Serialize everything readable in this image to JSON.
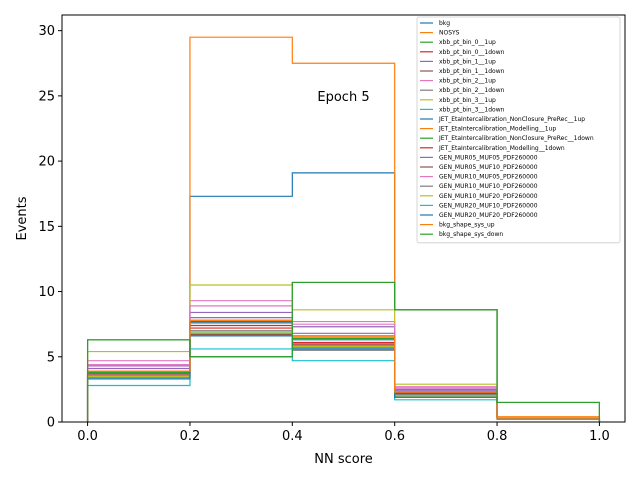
{
  "chart_data": {
    "type": "line",
    "style": "step-histogram",
    "title": "",
    "xlabel": "NN score",
    "ylabel": "Events",
    "xlim": [
      -0.05,
      1.05
    ],
    "ylim": [
      0,
      31.2
    ],
    "xticks": [
      "0.0",
      "0.2",
      "0.4",
      "0.6",
      "0.8",
      "1.0"
    ],
    "xtick_values": [
      0.0,
      0.2,
      0.4,
      0.6,
      0.8,
      1.0
    ],
    "yticks": [
      "0",
      "5",
      "10",
      "15",
      "20",
      "25",
      "30"
    ],
    "ytick_values": [
      0,
      5,
      10,
      15,
      20,
      25,
      30
    ],
    "bin_edges": [
      0.0,
      0.2,
      0.4,
      0.6,
      0.8,
      1.0
    ],
    "annotation": {
      "text": "Epoch 5",
      "x": 0.5,
      "y": 25
    },
    "legend_location": "top-right",
    "series": [
      {
        "name": "bkg",
        "color": "#1f77b4",
        "values": [
          3.8,
          17.3,
          19.1,
          8.6,
          0.3
        ]
      },
      {
        "name": "NOSYS",
        "color": "#ff7f0e",
        "values": [
          3.9,
          29.5,
          27.5,
          8.6,
          0.4
        ]
      },
      {
        "name": "xbb_pt_bin_0__1up",
        "color": "#2ca02c",
        "values": [
          6.3,
          5.0,
          10.7,
          8.6,
          1.5
        ]
      },
      {
        "name": "xbb_pt_bin_0__1down",
        "color": "#d62728",
        "values": [
          3.6,
          7.2,
          5.9,
          2.3,
          0.3
        ]
      },
      {
        "name": "xbb_pt_bin_1__1up",
        "color": "#9467bd",
        "values": [
          4.3,
          8.4,
          7.3,
          2.5,
          0.3
        ]
      },
      {
        "name": "xbb_pt_bin_1__1down",
        "color": "#8c564b",
        "values": [
          3.5,
          6.7,
          5.6,
          2.1,
          0.3
        ]
      },
      {
        "name": "xbb_pt_bin_2__1up",
        "color": "#e377c2",
        "values": [
          4.7,
          9.3,
          7.7,
          2.7,
          0.3
        ]
      },
      {
        "name": "xbb_pt_bin_2__1down",
        "color": "#7f7f7f",
        "values": [
          3.4,
          6.6,
          5.5,
          2.0,
          0.3
        ]
      },
      {
        "name": "xbb_pt_bin_3__1up",
        "color": "#bcbd22",
        "values": [
          5.4,
          10.5,
          8.6,
          2.9,
          0.3
        ]
      },
      {
        "name": "xbb_pt_bin_3__1down",
        "color": "#17becf",
        "values": [
          2.8,
          5.6,
          4.7,
          1.7,
          0.2
        ]
      },
      {
        "name": "JET_EtaIntercalibration_NonClosure_PreRec__1up",
        "color": "#1f77b4",
        "values": [
          3.8,
          7.6,
          6.3,
          2.2,
          0.3
        ]
      },
      {
        "name": "JET_EtaIntercalibration_Modelling__1up",
        "color": "#ff7f0e",
        "values": [
          3.9,
          7.8,
          6.5,
          2.3,
          0.3
        ]
      },
      {
        "name": "JET_EtaIntercalibration_NonClosure_PreRec__1down",
        "color": "#2ca02c",
        "values": [
          3.8,
          7.7,
          6.4,
          2.2,
          0.3
        ]
      },
      {
        "name": "JET_EtaIntercalibration_Modelling__1down",
        "color": "#d62728",
        "values": [
          3.7,
          7.4,
          6.1,
          2.2,
          0.3
        ]
      },
      {
        "name": "GEN_MUR05_MUF05_PDF260000",
        "color": "#9467bd",
        "values": [
          4.1,
          8.0,
          6.8,
          2.4,
          0.3
        ]
      },
      {
        "name": "GEN_MUR05_MUF10_PDF260000",
        "color": "#8c564b",
        "values": [
          3.9,
          7.7,
          6.6,
          2.3,
          0.3
        ]
      },
      {
        "name": "GEN_MUR10_MUF05_PDF260000",
        "color": "#e377c2",
        "values": [
          4.4,
          8.9,
          7.5,
          2.6,
          0.3
        ]
      },
      {
        "name": "GEN_MUR10_MUF10_PDF260000",
        "color": "#7f7f7f",
        "values": [
          3.6,
          7.0,
          6.0,
          2.1,
          0.3
        ]
      },
      {
        "name": "GEN_MUR10_MUF20_PDF260000",
        "color": "#bcbd22",
        "values": [
          3.5,
          6.9,
          5.8,
          2.0,
          0.3
        ]
      },
      {
        "name": "GEN_MUR20_MUF10_PDF260000",
        "color": "#17becf",
        "values": [
          3.4,
          6.8,
          5.7,
          1.9,
          0.3
        ]
      },
      {
        "name": "GEN_MUR20_MUF20_PDF260000",
        "color": "#1f77b4",
        "values": [
          3.3,
          6.6,
          5.6,
          1.9,
          0.3
        ]
      },
      {
        "name": "bkg_shape_sys_up",
        "color": "#ff7f0e",
        "values": [
          3.9,
          7.8,
          6.6,
          2.3,
          0.3
        ]
      },
      {
        "name": "bkg_shape_sys_down",
        "color": "#2ca02c",
        "values": [
          6.3,
          5.0,
          10.7,
          8.6,
          1.5
        ]
      }
    ]
  }
}
